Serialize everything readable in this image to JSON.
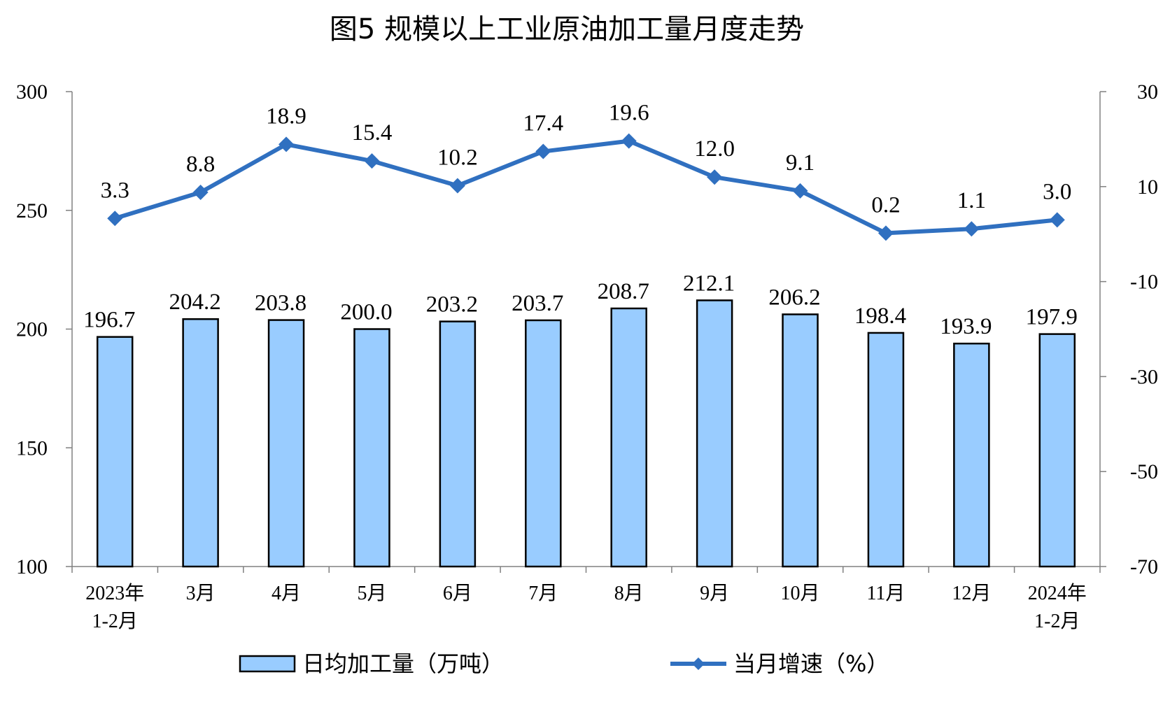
{
  "chart_data": {
    "type": "bar+line",
    "title": "图5 规模以上工业原油加工量月度走势",
    "categories": [
      [
        "2023年",
        "1-2月"
      ],
      [
        "3月"
      ],
      [
        "4月"
      ],
      [
        "5月"
      ],
      [
        "6月"
      ],
      [
        "7月"
      ],
      [
        "8月"
      ],
      [
        "9月"
      ],
      [
        "10月"
      ],
      [
        "11月"
      ],
      [
        "12月"
      ],
      [
        "2024年",
        "1-2月"
      ]
    ],
    "series": [
      {
        "name": "日均加工量（万吨）",
        "type": "bar",
        "axis": "left",
        "color": "#99CCFF",
        "values": [
          196.7,
          204.2,
          203.8,
          200.0,
          203.2,
          203.7,
          208.7,
          212.1,
          206.2,
          198.4,
          193.9,
          197.9
        ],
        "labels": [
          "196.7",
          "204.2",
          "203.8",
          "200.0",
          "203.2",
          "203.7",
          "208.7",
          "212.1",
          "206.2",
          "198.4",
          "193.9",
          "197.9"
        ]
      },
      {
        "name": "当月增速（%）",
        "type": "line",
        "axis": "right",
        "color": "#3070C0",
        "marker": "diamond",
        "values": [
          3.3,
          8.8,
          18.9,
          15.4,
          10.2,
          17.4,
          19.6,
          12.0,
          9.1,
          0.2,
          1.1,
          3.0
        ],
        "labels": [
          "3.3",
          "8.8",
          "18.9",
          "15.4",
          "10.2",
          "17.4",
          "19.6",
          "12.0",
          "9.1",
          "0.2",
          "1.1",
          "3.0"
        ]
      }
    ],
    "y_left": {
      "min": 100,
      "max": 300,
      "ticks": [
        "100",
        "150",
        "200",
        "250",
        "300"
      ]
    },
    "y_right": {
      "min": -70,
      "max": 30,
      "ticks": [
        "-70",
        "-50",
        "-30",
        "-10",
        "10",
        "30"
      ]
    },
    "grid": false,
    "legend_position": "bottom"
  }
}
